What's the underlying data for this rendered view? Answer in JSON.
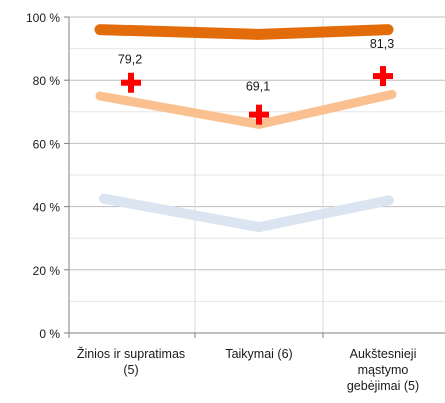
{
  "chart_data": {
    "type": "line",
    "title": "",
    "xlabel": "",
    "ylabel": "",
    "ylim": [
      0,
      100
    ],
    "y_ticks": [
      "0 %",
      "20 %",
      "40 %",
      "60 %",
      "80 %",
      "100 %"
    ],
    "y_tick_values": [
      0,
      20,
      40,
      60,
      80,
      100
    ],
    "grid": true,
    "legend": "none",
    "categories": [
      [
        "Žinios ir supratimas",
        "(5)"
      ],
      [
        "Taikymai (6)"
      ],
      [
        "Aukštesnieji",
        "mąstymo",
        "gebėjimai (5)"
      ]
    ],
    "series": [
      {
        "key": "top_band",
        "values": [
          96,
          94.5,
          96
        ],
        "color": "#e36c0a",
        "style": "band"
      },
      {
        "key": "mid_band",
        "values": [
          75,
          66,
          75.5
        ],
        "color": "#fac090",
        "style": "band"
      },
      {
        "key": "low_band",
        "values": [
          42.5,
          33.5,
          42
        ],
        "color": "#dbe5f1",
        "style": "band"
      },
      {
        "key": "markers",
        "values": [
          79.2,
          69.1,
          81.3
        ],
        "color": "#ff0000",
        "style": "plus-marker",
        "labels": [
          "79,2",
          "69,1",
          "81,3"
        ]
      }
    ]
  }
}
